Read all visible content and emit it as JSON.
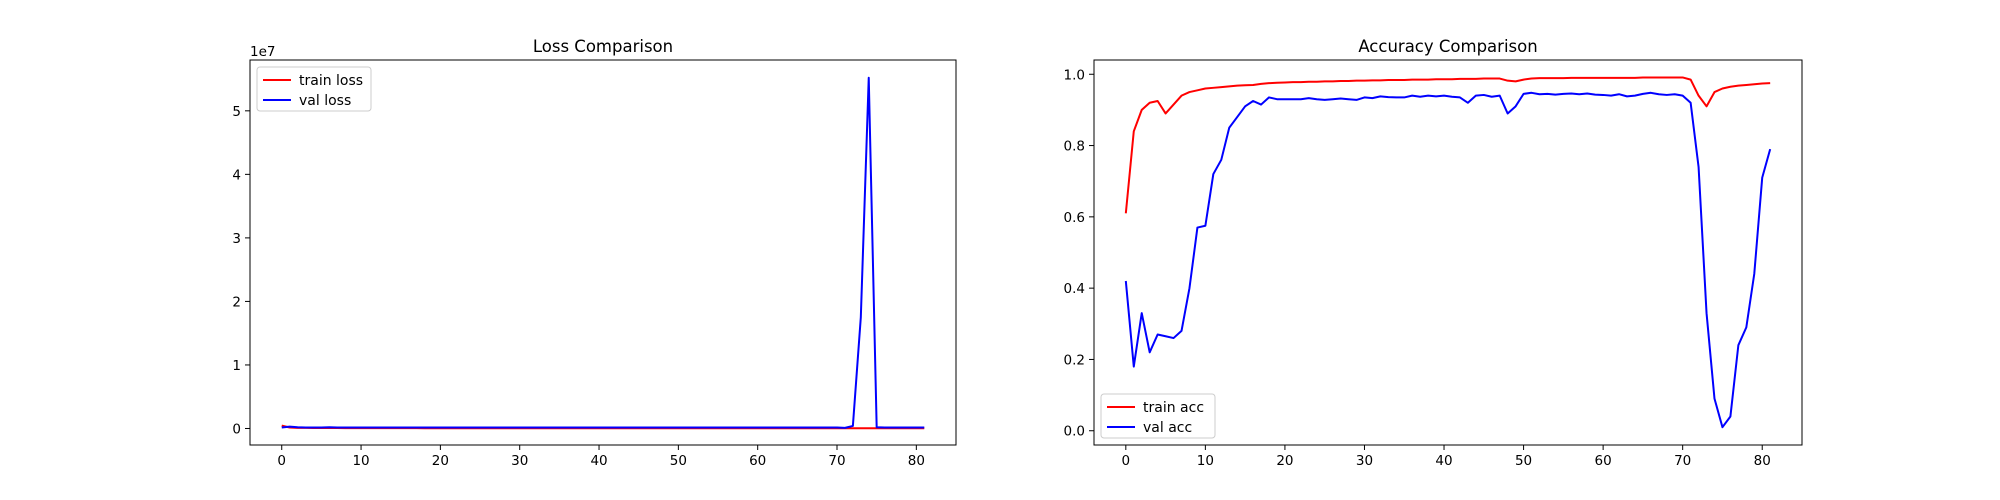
{
  "chart_data": [
    {
      "type": "line",
      "title": "Loss Comparison",
      "xlabel": "",
      "ylabel": "",
      "xlim": [
        -4,
        85
      ],
      "ylim": [
        -2600000,
        58000000
      ],
      "offset_text": "1e7",
      "xticks": [
        0,
        10,
        20,
        30,
        40,
        50,
        60,
        70,
        80
      ],
      "yticks": [
        0,
        10000000,
        20000000,
        30000000,
        40000000,
        50000000
      ],
      "ytick_labels": [
        "0",
        "1",
        "2",
        "3",
        "4",
        "5"
      ],
      "legend": "upper-left",
      "grid": false,
      "series": [
        {
          "name": "train loss",
          "color": "#ff0000",
          "x": [
            0,
            1,
            2,
            3,
            4,
            5,
            6,
            7,
            8,
            9,
            10,
            11,
            12,
            13,
            14,
            15,
            16,
            17,
            18,
            19,
            20,
            21,
            22,
            23,
            24,
            25,
            26,
            27,
            28,
            29,
            30,
            31,
            32,
            33,
            34,
            35,
            36,
            37,
            38,
            39,
            40,
            41,
            42,
            43,
            44,
            45,
            46,
            47,
            48,
            49,
            50,
            51,
            52,
            53,
            54,
            55,
            56,
            57,
            58,
            59,
            60,
            61,
            62,
            63,
            64,
            65,
            66,
            67,
            68,
            69,
            70,
            71,
            72,
            73,
            74,
            75,
            76,
            77,
            78,
            79,
            80,
            81
          ],
          "y": [
            450000,
            150000,
            100000,
            90000,
            80000,
            80000,
            70000,
            70000,
            60000,
            60000,
            60000,
            50000,
            50000,
            50000,
            50000,
            50000,
            50000,
            50000,
            40000,
            40000,
            40000,
            40000,
            40000,
            40000,
            40000,
            40000,
            40000,
            40000,
            40000,
            40000,
            40000,
            40000,
            40000,
            40000,
            40000,
            40000,
            40000,
            40000,
            40000,
            40000,
            40000,
            40000,
            40000,
            40000,
            40000,
            40000,
            40000,
            40000,
            40000,
            40000,
            40000,
            40000,
            40000,
            40000,
            40000,
            40000,
            40000,
            40000,
            40000,
            40000,
            40000,
            40000,
            40000,
            40000,
            40000,
            40000,
            40000,
            40000,
            40000,
            40000,
            40000,
            40000,
            40000,
            40000,
            40000,
            40000,
            40000,
            40000,
            40000,
            40000,
            40000,
            40000
          ]
        },
        {
          "name": "val loss",
          "color": "#0000ff",
          "x": [
            0,
            1,
            2,
            3,
            4,
            5,
            6,
            7,
            8,
            9,
            10,
            11,
            12,
            13,
            14,
            15,
            16,
            17,
            18,
            19,
            20,
            21,
            22,
            23,
            24,
            25,
            26,
            27,
            28,
            29,
            30,
            31,
            32,
            33,
            34,
            35,
            36,
            37,
            38,
            39,
            40,
            41,
            42,
            43,
            44,
            45,
            46,
            47,
            48,
            49,
            50,
            51,
            52,
            53,
            54,
            55,
            56,
            57,
            58,
            59,
            60,
            61,
            62,
            63,
            64,
            65,
            66,
            67,
            68,
            69,
            70,
            71,
            72,
            73,
            74,
            75,
            76,
            77,
            78,
            79,
            80,
            81
          ],
          "y": [
            150000,
            300000,
            200000,
            150000,
            150000,
            150000,
            200000,
            150000,
            150000,
            150000,
            150000,
            150000,
            150000,
            150000,
            150000,
            150000,
            150000,
            150000,
            150000,
            150000,
            150000,
            150000,
            150000,
            150000,
            150000,
            150000,
            150000,
            150000,
            150000,
            150000,
            150000,
            150000,
            150000,
            150000,
            150000,
            150000,
            150000,
            150000,
            150000,
            150000,
            150000,
            150000,
            150000,
            150000,
            150000,
            150000,
            150000,
            150000,
            150000,
            150000,
            150000,
            150000,
            150000,
            150000,
            150000,
            150000,
            150000,
            150000,
            150000,
            150000,
            150000,
            150000,
            150000,
            150000,
            150000,
            150000,
            150000,
            150000,
            150000,
            150000,
            150000,
            100000,
            400000,
            17500000,
            55200000,
            200000,
            150000,
            150000,
            150000,
            150000,
            150000,
            150000
          ]
        }
      ]
    },
    {
      "type": "line",
      "title": "Accuracy Comparison",
      "xlabel": "",
      "ylabel": "",
      "xlim": [
        -4,
        85
      ],
      "ylim": [
        -0.04,
        1.04
      ],
      "xticks": [
        0,
        10,
        20,
        30,
        40,
        50,
        60,
        70,
        80
      ],
      "yticks": [
        0.0,
        0.2,
        0.4,
        0.6,
        0.8,
        1.0
      ],
      "ytick_labels": [
        "0.0",
        "0.2",
        "0.4",
        "0.6",
        "0.8",
        "1.0"
      ],
      "legend": "lower-left",
      "grid": false,
      "series": [
        {
          "name": "train acc",
          "color": "#ff0000",
          "x": [
            0,
            1,
            2,
            3,
            4,
            5,
            6,
            7,
            8,
            9,
            10,
            11,
            12,
            13,
            14,
            15,
            16,
            17,
            18,
            19,
            20,
            21,
            22,
            23,
            24,
            25,
            26,
            27,
            28,
            29,
            30,
            31,
            32,
            33,
            34,
            35,
            36,
            37,
            38,
            39,
            40,
            41,
            42,
            43,
            44,
            45,
            46,
            47,
            48,
            49,
            50,
            51,
            52,
            53,
            54,
            55,
            56,
            57,
            58,
            59,
            60,
            61,
            62,
            63,
            64,
            65,
            66,
            67,
            68,
            69,
            70,
            71,
            72,
            73,
            74,
            75,
            76,
            77,
            78,
            79,
            80,
            81
          ],
          "y": [
            0.61,
            0.84,
            0.9,
            0.92,
            0.925,
            0.89,
            0.915,
            0.94,
            0.95,
            0.955,
            0.96,
            0.962,
            0.964,
            0.966,
            0.968,
            0.969,
            0.97,
            0.973,
            0.975,
            0.976,
            0.977,
            0.978,
            0.978,
            0.979,
            0.979,
            0.98,
            0.98,
            0.981,
            0.981,
            0.982,
            0.982,
            0.983,
            0.983,
            0.984,
            0.984,
            0.984,
            0.985,
            0.985,
            0.985,
            0.986,
            0.986,
            0.986,
            0.987,
            0.987,
            0.987,
            0.988,
            0.988,
            0.988,
            0.982,
            0.98,
            0.985,
            0.988,
            0.989,
            0.989,
            0.989,
            0.989,
            0.99,
            0.99,
            0.99,
            0.99,
            0.99,
            0.99,
            0.99,
            0.99,
            0.99,
            0.991,
            0.991,
            0.991,
            0.991,
            0.991,
            0.991,
            0.985,
            0.94,
            0.91,
            0.95,
            0.96,
            0.965,
            0.968,
            0.97,
            0.972,
            0.974,
            0.975
          ]
        },
        {
          "name": "val acc",
          "color": "#0000ff",
          "x": [
            0,
            1,
            2,
            3,
            4,
            5,
            6,
            7,
            8,
            9,
            10,
            11,
            12,
            13,
            14,
            15,
            16,
            17,
            18,
            19,
            20,
            21,
            22,
            23,
            24,
            25,
            26,
            27,
            28,
            29,
            30,
            31,
            32,
            33,
            34,
            35,
            36,
            37,
            38,
            39,
            40,
            41,
            42,
            43,
            44,
            45,
            46,
            47,
            48,
            49,
            50,
            51,
            52,
            53,
            54,
            55,
            56,
            57,
            58,
            59,
            60,
            61,
            62,
            63,
            64,
            65,
            66,
            67,
            68,
            69,
            70,
            71,
            72,
            73,
            74,
            75,
            76,
            77,
            78,
            79,
            80,
            81
          ],
          "y": [
            0.42,
            0.18,
            0.33,
            0.22,
            0.27,
            0.265,
            0.26,
            0.28,
            0.4,
            0.57,
            0.575,
            0.72,
            0.76,
            0.85,
            0.88,
            0.91,
            0.925,
            0.915,
            0.935,
            0.93,
            0.93,
            0.93,
            0.93,
            0.933,
            0.93,
            0.928,
            0.93,
            0.932,
            0.93,
            0.928,
            0.935,
            0.933,
            0.938,
            0.936,
            0.935,
            0.935,
            0.94,
            0.937,
            0.94,
            0.938,
            0.94,
            0.937,
            0.935,
            0.92,
            0.94,
            0.942,
            0.937,
            0.94,
            0.89,
            0.91,
            0.945,
            0.948,
            0.944,
            0.945,
            0.943,
            0.945,
            0.946,
            0.944,
            0.946,
            0.943,
            0.942,
            0.94,
            0.944,
            0.938,
            0.94,
            0.945,
            0.948,
            0.944,
            0.942,
            0.944,
            0.94,
            0.92,
            0.74,
            0.33,
            0.09,
            0.01,
            0.04,
            0.24,
            0.29,
            0.44,
            0.71,
            0.79
          ]
        }
      ]
    }
  ]
}
